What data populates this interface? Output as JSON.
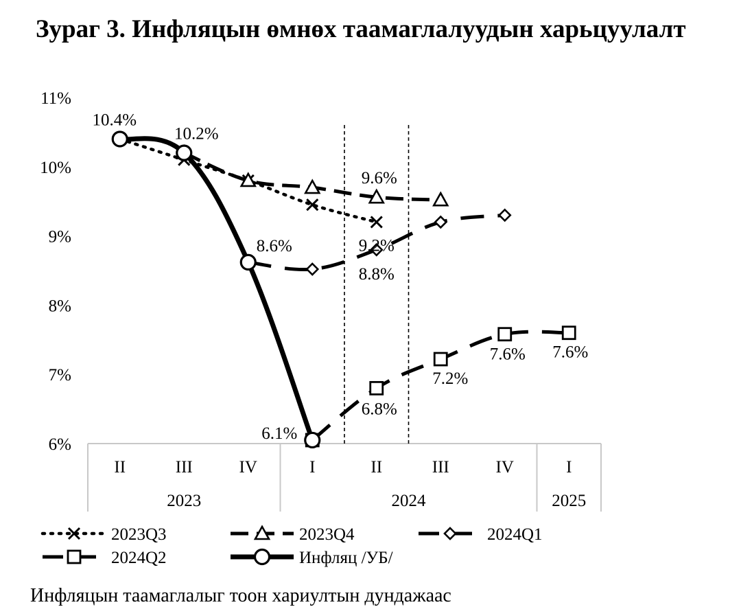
{
  "title": "Зураг 3. Инфляцын өмнөх таамаглалуудын харьцуулалт",
  "footer_text": "Инфляцын таамаглалыг тоон хариултын дундажаас",
  "chart_data": {
    "type": "line",
    "title": "Зураг 3. Инфляцын өмнөх таамаглалуудын харьцуулалт",
    "ylim": [
      6,
      11
    ],
    "y_ticks": [
      "6%",
      "7%",
      "8%",
      "9%",
      "10%",
      "11%"
    ],
    "grid": false,
    "legend_position": "bottom",
    "categories": [
      "II",
      "III",
      "IV",
      "I",
      "II",
      "III",
      "IV",
      "I"
    ],
    "year_groups": [
      {
        "label": "2023",
        "start": 0,
        "end": 2
      },
      {
        "label": "2024",
        "start": 3,
        "end": 6
      },
      {
        "label": "2025",
        "start": 7,
        "end": 7
      }
    ],
    "series": [
      {
        "name": "2023Q3",
        "values": [
          10.4,
          10.1,
          9.8,
          9.45,
          9.2,
          null,
          null,
          null
        ],
        "marker": "x",
        "dash": "dotted"
      },
      {
        "name": "2023Q4",
        "values": [
          null,
          10.2,
          9.8,
          9.7,
          9.56,
          9.52,
          null,
          null
        ],
        "marker": "triangle",
        "dash": "dashed"
      },
      {
        "name": "2024Q1",
        "values": [
          null,
          null,
          8.62,
          8.52,
          8.8,
          9.2,
          9.3,
          null
        ],
        "marker": "diamond",
        "dash": "longdash"
      },
      {
        "name": "2024Q2",
        "values": [
          null,
          null,
          null,
          6.05,
          6.8,
          7.22,
          7.58,
          7.6
        ],
        "marker": "square",
        "dash": "longdash"
      },
      {
        "name": "Инфляц /УБ/",
        "values": [
          10.4,
          10.2,
          8.62,
          6.05,
          null,
          null,
          null,
          null
        ],
        "marker": "circle",
        "dash": "solid"
      }
    ],
    "data_labels": [
      {
        "text": "10.4%",
        "cat": 0,
        "value": 10.4
      },
      {
        "text": "10.2%",
        "cat": 1,
        "value": 10.2
      },
      {
        "text": "8.6%",
        "cat": 2,
        "value": 8.62
      },
      {
        "text": "6.1%",
        "cat": 3,
        "value": 6.05
      },
      {
        "text": "9.6%",
        "cat": 4,
        "value": 9.56
      },
      {
        "text": "9.2%",
        "cat": 4,
        "value": 9.2
      },
      {
        "text": "8.8%",
        "cat": 4,
        "value": 8.8
      },
      {
        "text": "6.8%",
        "cat": 4,
        "value": 6.8
      },
      {
        "text": "7.2%",
        "cat": 5,
        "value": 7.22
      },
      {
        "text": "7.6%",
        "cat": 6,
        "value": 7.58
      },
      {
        "text": "7.6%",
        "cat": 7,
        "value": 7.6
      }
    ]
  }
}
